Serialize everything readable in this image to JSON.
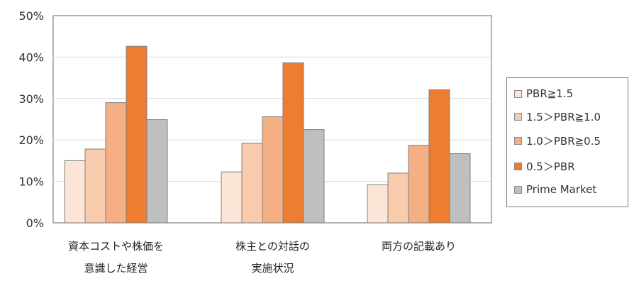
{
  "chart_data": {
    "type": "bar",
    "title": "",
    "xlabel": "",
    "ylabel": "",
    "ylim": [
      0,
      50
    ],
    "y_ticks": [
      "0%",
      "10%",
      "20%",
      "30%",
      "40%",
      "50%"
    ],
    "grid": true,
    "legend_position": "right",
    "categories": [
      [
        "資本コストや株価を",
        "意識した経営"
      ],
      [
        "株主との対話の",
        "実施状況"
      ],
      [
        "両方の記載あり"
      ]
    ],
    "series": [
      {
        "name": "PBR≧1.5",
        "color": "#fce4d6",
        "values": [
          15,
          12.3,
          9.2
        ]
      },
      {
        "name": "1.5＞PBR≧1.0",
        "color": "#f8cbad",
        "values": [
          17.8,
          19.2,
          12
        ]
      },
      {
        "name": "1.0＞PBR≧0.5",
        "color": "#f4b084",
        "values": [
          29,
          25.6,
          18.7
        ]
      },
      {
        "name": "0.5＞PBR",
        "color": "#ed7d31",
        "values": [
          42.6,
          38.6,
          32.1
        ]
      },
      {
        "name": "Prime Market",
        "color": "#bfbfbf",
        "values": [
          24.9,
          22.5,
          16.7
        ]
      }
    ]
  }
}
